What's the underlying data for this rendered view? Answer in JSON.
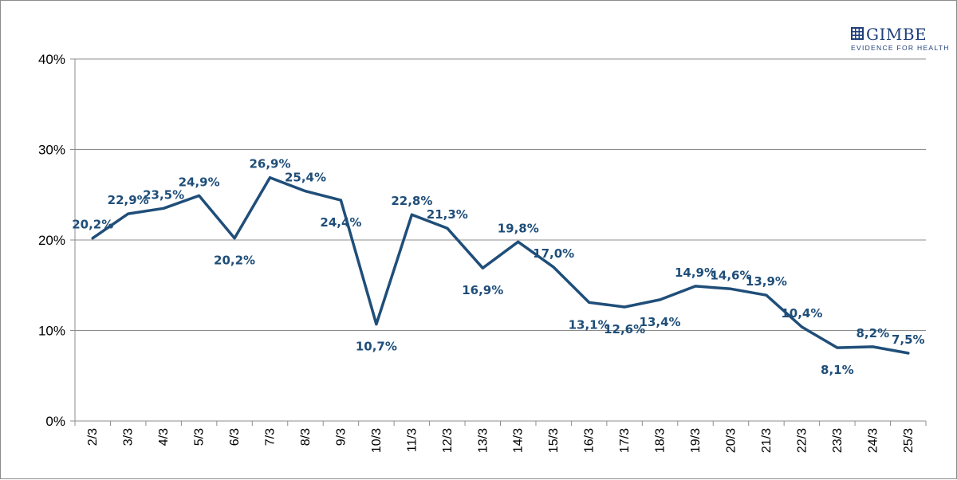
{
  "logo": {
    "name": "GIMBE",
    "tagline": "EVIDENCE FOR HEALTH",
    "color": "#1f3f7a"
  },
  "chart_data": {
    "type": "line",
    "title": "",
    "xlabel": "",
    "ylabel": "",
    "ylim": [
      0,
      40
    ],
    "yticks": [
      0,
      10,
      20,
      30,
      40
    ],
    "ytick_labels": [
      "0%",
      "10%",
      "20%",
      "30%",
      "40%"
    ],
    "grid": true,
    "legend": "none",
    "line_color": "#1f4e79",
    "categories": [
      "2/3",
      "3/3",
      "4/3",
      "5/3",
      "6/3",
      "7/3",
      "8/3",
      "9/3",
      "10/3",
      "11/3",
      "12/3",
      "13/3",
      "14/3",
      "15/3",
      "16/3",
      "17/3",
      "18/3",
      "19/3",
      "20/3",
      "21/3",
      "22/3",
      "23/3",
      "24/3",
      "25/3"
    ],
    "values": [
      20.2,
      22.9,
      23.5,
      24.9,
      20.2,
      26.9,
      25.4,
      24.4,
      10.7,
      22.8,
      21.3,
      16.9,
      19.8,
      17.0,
      13.1,
      12.6,
      13.4,
      14.9,
      14.6,
      13.9,
      10.4,
      8.1,
      8.2,
      7.5
    ],
    "data_labels": [
      "20,2%",
      "22,9%",
      "23,5%",
      "24,9%",
      "20,2%",
      "26,9%",
      "25,4%",
      "24,4%",
      "10,7%",
      "22,8%",
      "21,3%",
      "16,9%",
      "19,8%",
      "17,0%",
      "13,1%",
      "12,6%",
      "13,4%",
      "14,9%",
      "14,6%",
      "13,9%",
      "10,4%",
      "8,1%",
      "8,2%",
      "7,5%"
    ],
    "label_positions": [
      "above",
      "above",
      "above",
      "above",
      "below",
      "above",
      "above",
      "below",
      "below",
      "above",
      "above",
      "below",
      "above",
      "above",
      "below",
      "below",
      "below",
      "above",
      "above",
      "above",
      "above",
      "below",
      "above",
      "above"
    ]
  }
}
